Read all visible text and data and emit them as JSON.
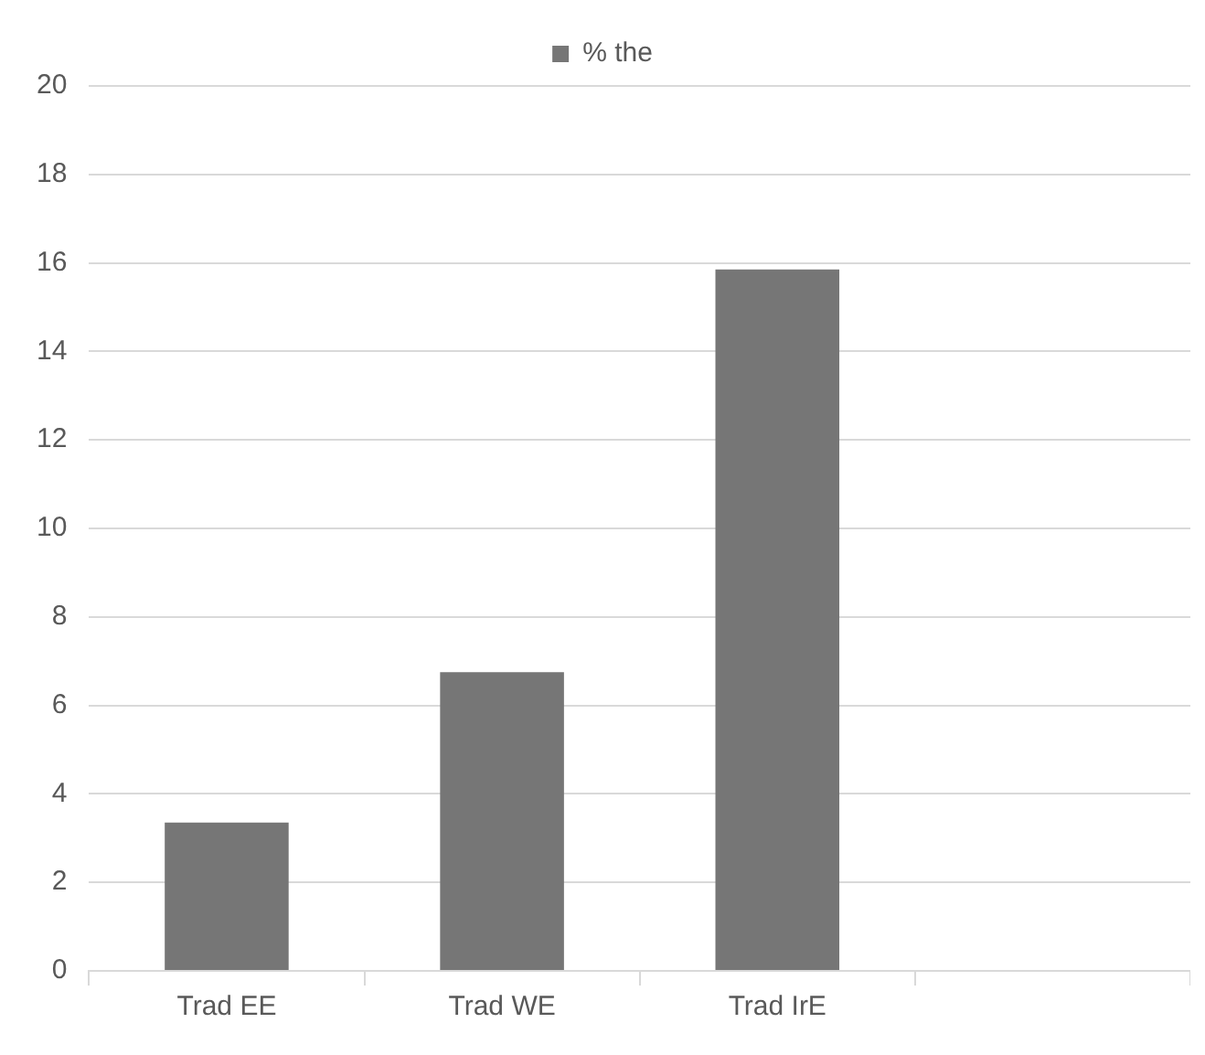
{
  "chart_data": {
    "type": "bar",
    "categories": [
      "Trad EE",
      "Trad WE",
      "Trad IrE",
      null
    ],
    "series": [
      {
        "name": "% the",
        "color": "#767676",
        "values": [
          3.35,
          6.75,
          15.85,
          null
        ]
      }
    ],
    "ylim": [
      0,
      20
    ],
    "yticks": [
      0,
      2,
      4,
      6,
      8,
      10,
      12,
      14,
      16,
      18,
      20
    ],
    "grid": "y",
    "legend": "top"
  }
}
